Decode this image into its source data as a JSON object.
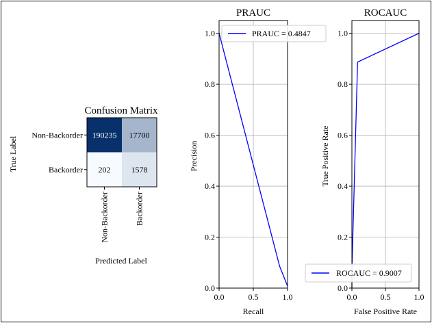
{
  "chart_data": [
    {
      "type": "heatmap",
      "title": "Confusion Matrix",
      "xlabel": "Predicted Label",
      "ylabel": "True Label",
      "row_labels": [
        "Non-Backorder",
        "Backorder"
      ],
      "col_labels": [
        "Non-Backorder",
        "Backorder"
      ],
      "values": [
        [
          190235,
          17700
        ],
        [
          202,
          1578
        ]
      ],
      "colormap": "Blues",
      "colors": {
        "high": "#08306b",
        "low": "#f7fbff"
      }
    },
    {
      "type": "line",
      "title": "PRAUC",
      "xlabel": "Recall",
      "ylabel": "Precision",
      "xlim": [
        0.0,
        1.0
      ],
      "ylim": [
        0.0,
        1.05
      ],
      "xticks": [
        "0.0",
        "0.5",
        "1.0"
      ],
      "yticks": [
        "0.0",
        "0.2",
        "0.4",
        "0.6",
        "0.8",
        "1.0"
      ],
      "grid": true,
      "legend_position": "upper-right",
      "series": [
        {
          "name": "PRAUC = 0.4847",
          "color": "#0000ff",
          "x": [
            0.0,
            0.885,
            1.0
          ],
          "y": [
            1.0,
            0.085,
            0.008
          ]
        }
      ]
    },
    {
      "type": "line",
      "title": "ROCAUC",
      "xlabel": "False Positive Rate",
      "ylabel": "True Positive Rate",
      "xlim": [
        0.0,
        1.0
      ],
      "ylim": [
        0.0,
        1.05
      ],
      "xticks": [
        "0.0",
        "0.5",
        "1.0"
      ],
      "yticks": [
        "0.0",
        "0.2",
        "0.4",
        "0.6",
        "0.8",
        "1.0"
      ],
      "grid": true,
      "legend_position": "lower-right",
      "series": [
        {
          "name": "ROCAUC = 0.9007",
          "color": "#0000ff",
          "x": [
            0.0,
            0.001,
            0.085,
            1.0
          ],
          "y": [
            0.0,
            0.08,
            0.887,
            1.0
          ]
        }
      ]
    }
  ]
}
